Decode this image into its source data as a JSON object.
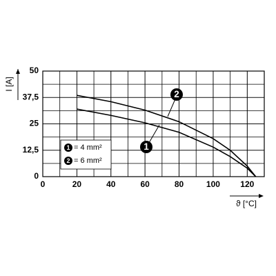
{
  "chart_data": {
    "type": "line",
    "y_label": "I [A]",
    "x_label": "ϑ [°C]",
    "xlim": [
      0,
      130
    ],
    "xticks": [
      0,
      20,
      40,
      60,
      80,
      100,
      120
    ],
    "ylim": [
      0,
      50
    ],
    "yticks": [
      0,
      {
        "value": 12.5,
        "label": "12,5"
      },
      25,
      {
        "value": 37.5,
        "label": "37,5"
      },
      50
    ],
    "grid": true,
    "series": [
      {
        "name": "= 4 mm²",
        "marker": "1",
        "color": "#000000",
        "x": [
          20,
          40,
          60,
          80,
          100,
          110,
          120,
          125
        ],
        "values": [
          32,
          29,
          25.5,
          21,
          14,
          9.5,
          4,
          0
        ]
      },
      {
        "name": "= 6 mm²",
        "marker": "2",
        "color": "#000000",
        "x": [
          20,
          40,
          60,
          80,
          100,
          110,
          120,
          125
        ],
        "values": [
          38.5,
          35.5,
          31.5,
          26,
          18,
          12.5,
          5,
          0
        ]
      }
    ]
  }
}
